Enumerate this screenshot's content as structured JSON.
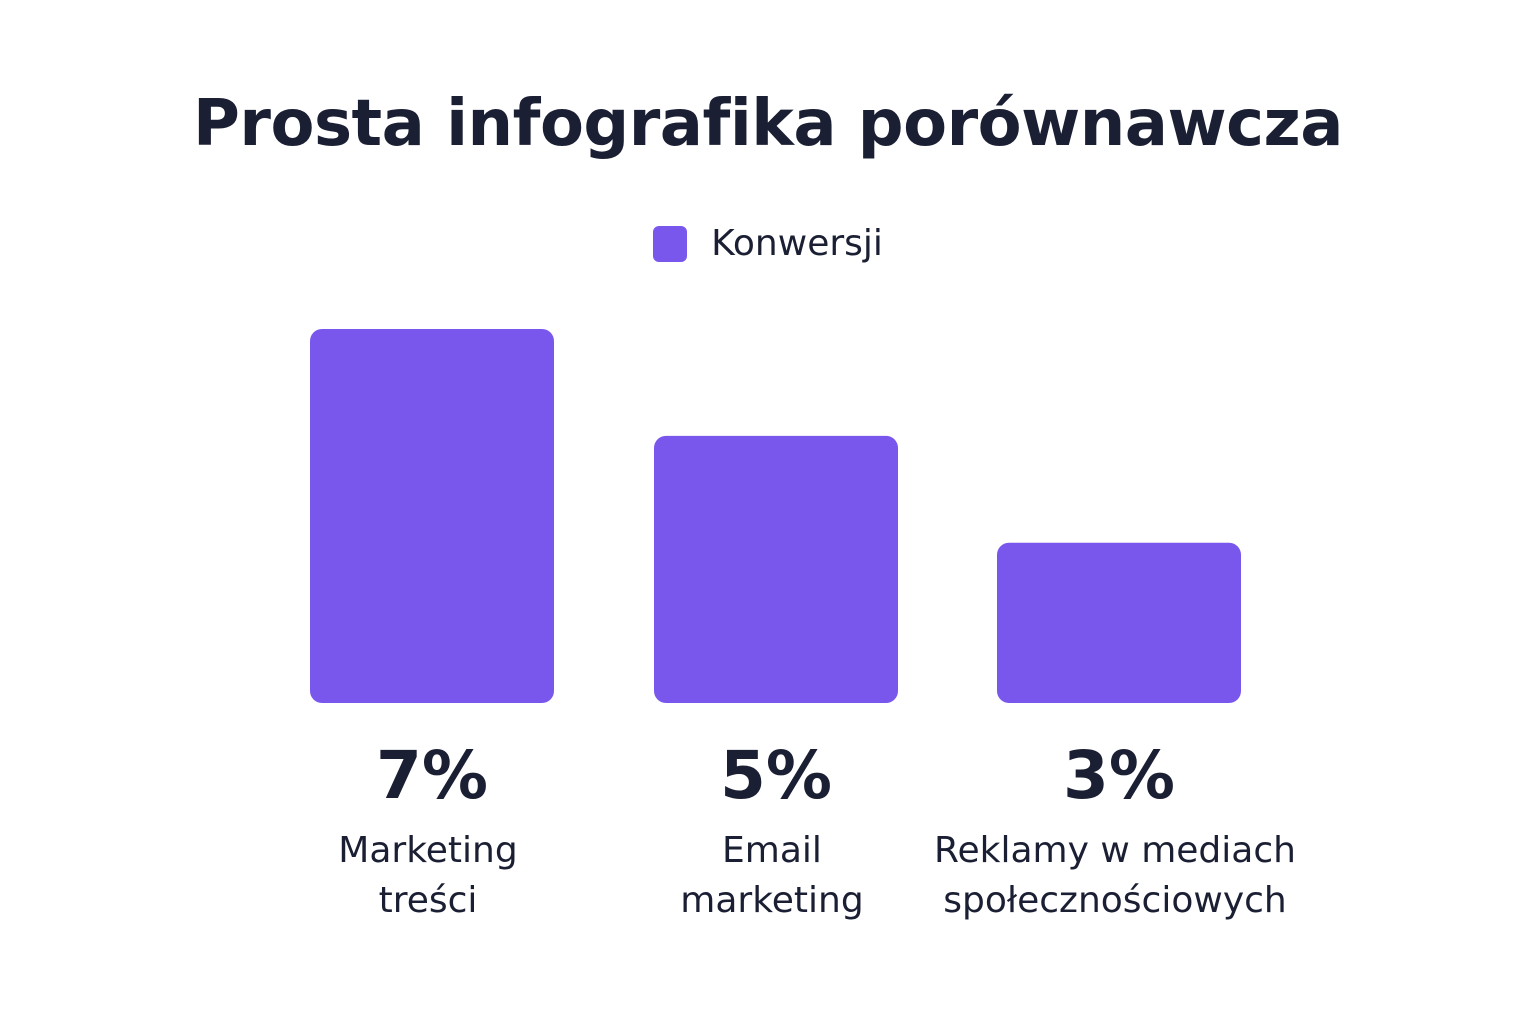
{
  "chart_data": {
    "type": "bar",
    "title": "Prosta infografika porównawcza",
    "legend": {
      "entries": [
        "Konwersji"
      ],
      "placement": "top-center"
    },
    "categories": [
      [
        "Marketing",
        "treści"
      ],
      [
        "Email",
        "marketing"
      ],
      [
        "Reklamy w mediach",
        "społecznościowych"
      ]
    ],
    "series": [
      {
        "name": "Konwersji",
        "values": [
          7,
          5,
          3
        ],
        "labels": [
          "7%",
          "5%",
          "3%"
        ],
        "color": "#7957ec"
      }
    ],
    "ylim": [
      0,
      7
    ],
    "grid": false
  }
}
